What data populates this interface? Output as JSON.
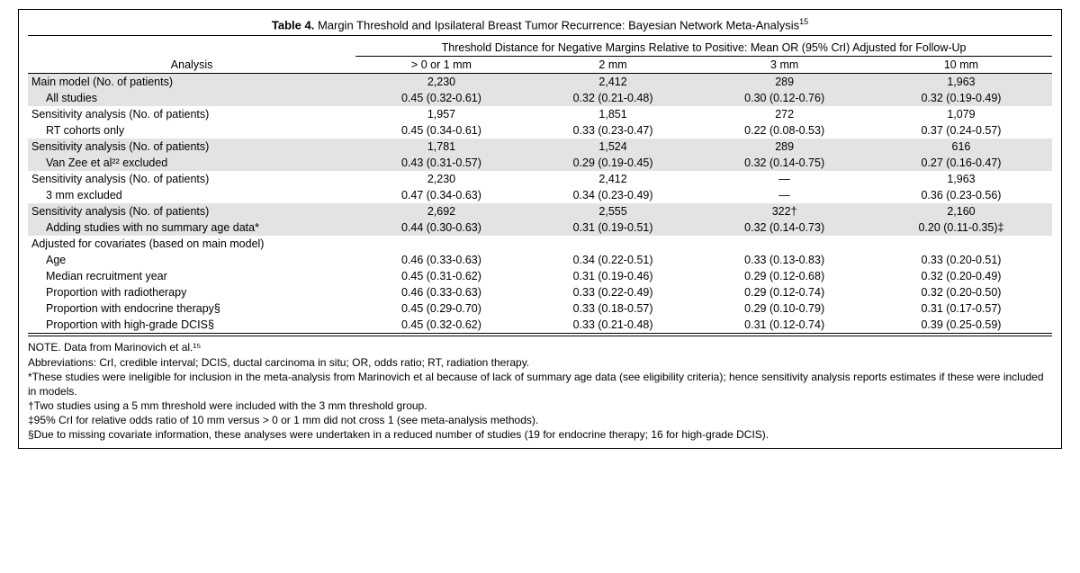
{
  "title_prefix": "Table 4.",
  "title_text": "Margin Threshold and Ipsilateral Breast Tumor Recurrence: Bayesian Network Meta-Analysis",
  "title_sup": "15",
  "header_span": "Threshold Distance for Negative Margins Relative to Positive: Mean OR (95% CrI) Adjusted for Follow-Up",
  "analysis_label": "Analysis",
  "col_labels": [
    "> 0 or 1 mm",
    "2 mm",
    "3 mm",
    "10 mm"
  ],
  "rows": [
    {
      "shade": true,
      "indent": false,
      "label": "Main model (No. of patients)",
      "cells": [
        "2,230",
        "2,412",
        "289",
        "1,963"
      ]
    },
    {
      "shade": true,
      "indent": true,
      "label": "All studies",
      "cells": [
        "0.45 (0.32-0.61)",
        "0.32 (0.21-0.48)",
        "0.30 (0.12-0.76)",
        "0.32 (0.19-0.49)"
      ]
    },
    {
      "shade": false,
      "indent": false,
      "label": "Sensitivity analysis (No. of patients)",
      "cells": [
        "1,957",
        "1,851",
        "272",
        "1,079"
      ]
    },
    {
      "shade": false,
      "indent": true,
      "label": "RT cohorts only",
      "cells": [
        "0.45 (0.34-0.61)",
        "0.33 (0.23-0.47)",
        "0.22 (0.08-0.53)",
        "0.37 (0.24-0.57)"
      ]
    },
    {
      "shade": true,
      "indent": false,
      "label": "Sensitivity analysis (No. of patients)",
      "cells": [
        "1,781",
        "1,524",
        "289",
        "616"
      ]
    },
    {
      "shade": true,
      "indent": true,
      "label": "Van Zee et al²² excluded",
      "cells": [
        "0.43 (0.31-0.57)",
        "0.29 (0.19-0.45)",
        "0.32 (0.14-0.75)",
        "0.27 (0.16-0.47)"
      ]
    },
    {
      "shade": false,
      "indent": false,
      "label": "Sensitivity analysis (No. of patients)",
      "cells": [
        "2,230",
        "2,412",
        "—",
        "1,963"
      ]
    },
    {
      "shade": false,
      "indent": true,
      "label": "3 mm excluded",
      "cells": [
        "0.47 (0.34-0.63)",
        "0.34 (0.23-0.49)",
        "—",
        "0.36 (0.23-0.56)"
      ]
    },
    {
      "shade": true,
      "indent": false,
      "label": "Sensitivity analysis (No. of patients)",
      "cells": [
        "2,692",
        "2,555",
        "322†",
        "2,160"
      ]
    },
    {
      "shade": true,
      "indent": true,
      "label": "Adding studies with no summary age data*",
      "cells": [
        "0.44 (0.30-0.63)",
        "0.31 (0.19-0.51)",
        "0.32 (0.14-0.73)",
        "0.20 (0.11-0.35)‡"
      ]
    },
    {
      "shade": false,
      "indent": false,
      "label": "Adjusted for covariates (based on main model)",
      "cells": [
        "",
        "",
        "",
        ""
      ]
    },
    {
      "shade": false,
      "indent": true,
      "label": "Age",
      "cells": [
        "0.46 (0.33-0.63)",
        "0.34 (0.22-0.51)",
        "0.33 (0.13-0.83)",
        "0.33 (0.20-0.51)"
      ]
    },
    {
      "shade": false,
      "indent": true,
      "label": "Median recruitment year",
      "cells": [
        "0.45 (0.31-0.62)",
        "0.31 (0.19-0.46)",
        "0.29 (0.12-0.68)",
        "0.32 (0.20-0.49)"
      ]
    },
    {
      "shade": false,
      "indent": true,
      "label": "Proportion with radiotherapy",
      "cells": [
        "0.46 (0.33-0.63)",
        "0.33 (0.22-0.49)",
        "0.29 (0.12-0.74)",
        "0.32 (0.20-0.50)"
      ]
    },
    {
      "shade": false,
      "indent": true,
      "label": "Proportion with endocrine therapy§",
      "cells": [
        "0.45 (0.29-0.70)",
        "0.33 (0.18-0.57)",
        "0.29 (0.10-0.79)",
        "0.31 (0.17-0.57)"
      ]
    },
    {
      "shade": false,
      "indent": true,
      "label": "Proportion with high-grade DCIS§",
      "cells": [
        "0.45 (0.32-0.62)",
        "0.33 (0.21-0.48)",
        "0.31 (0.12-0.74)",
        "0.39 (0.25-0.59)"
      ]
    }
  ],
  "notes": [
    "NOTE. Data from Marinovich et al.¹⁵",
    "Abbreviations: CrI, credible interval; DCIS, ductal carcinoma in situ; OR, odds ratio; RT, radiation therapy.",
    "*These studies were ineligible for inclusion in the meta-analysis from Marinovich et al because of lack of summary age data (see eligibility criteria); hence sensitivity analysis reports estimates if these were included in models.",
    "†Two studies using a 5 mm threshold were included with the 3 mm threshold group.",
    "‡95% CrI for relative odds ratio of 10 mm versus > 0 or 1 mm did not cross 1 (see meta-analysis methods).",
    "§Due to missing covariate information, these analyses were undertaken in a reduced number of studies (19 for endocrine therapy; 16 for high-grade DCIS)."
  ],
  "colors": {
    "shade": "#e3e3e3",
    "border": "#000000"
  }
}
